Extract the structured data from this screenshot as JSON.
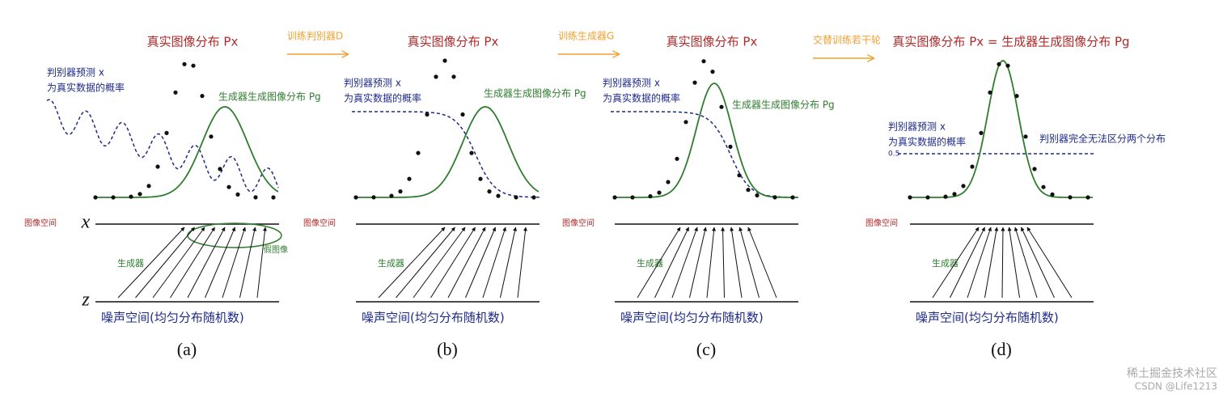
{
  "arrows": [
    "训练判别器D",
    "训练生成器G",
    "交替训练若干轮"
  ],
  "panels": [
    {
      "real": "真实图像分布 Px",
      "discriminator": [
        "判别器预测 x",
        "为真实数据的概率"
      ],
      "generator_dist": "生成器生成图像分布 Pg",
      "image_space": "图像空间",
      "x_axis": "x",
      "generator": "生成器",
      "z_axis": "z",
      "fake": "假图像",
      "noise_space": "噪声空间(均匀分布随机数)",
      "caption": "(a)"
    },
    {
      "real": "真实图像分布 Px",
      "discriminator": [
        "判别器预测 x",
        "为真实数据的概率"
      ],
      "generator_dist": "生成器生成图像分布 Pg",
      "image_space": "图像空间",
      "generator": "生成器",
      "noise_space": "噪声空间(均匀分布随机数)",
      "caption": "(b)"
    },
    {
      "real": "真实图像分布 Px",
      "discriminator": [
        "判别器预测 x",
        "为真实数据的概率"
      ],
      "generator_dist": "生成器生成图像分布 Pg",
      "image_space": "图像空间",
      "generator": "生成器",
      "noise_space": "噪声空间(均匀分布随机数)",
      "caption": "(c)"
    },
    {
      "real": "真实图像分布 Px = 生成器生成图像分布 Pg",
      "discriminator": [
        "判别器预测 x",
        "为真实数据的概率"
      ],
      "half": "0.5",
      "indistinguishable": "判别器完全无法区分两个分布",
      "image_space": "图像空间",
      "generator": "生成器",
      "noise_space": "噪声空间(均匀分布随机数)",
      "caption": "(d)"
    }
  ],
  "watermark": [
    "稀土掘金技术社区",
    "CSDN @Life1213"
  ]
}
